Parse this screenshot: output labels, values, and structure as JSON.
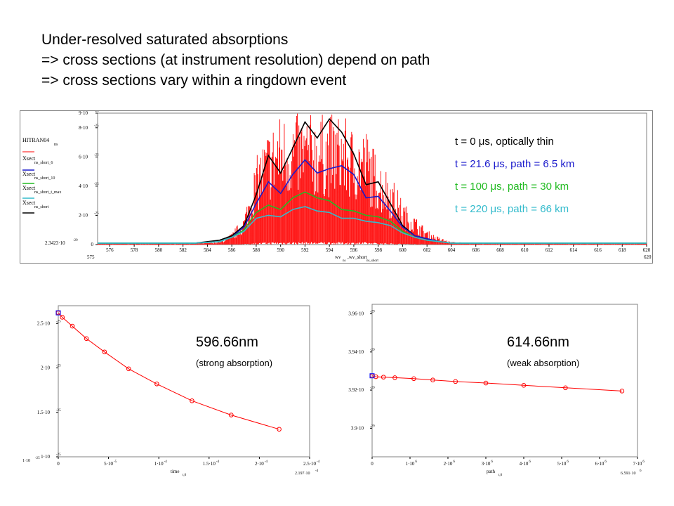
{
  "title_lines": [
    "Under-resolved saturated absorptions",
    "=> cross sections (at instrument resolution) depend on path",
    "=> cross sections vary within a ringdown event"
  ],
  "top_legend_labels": [
    "HITRAN04",
    "Xsect",
    "Xsect",
    "Xsect",
    "Xsect"
  ],
  "top_legend_subs": [
    "ns",
    "ns_short_6",
    "ns_short_10",
    "ns_short_t_max",
    "ns_short"
  ],
  "top_y_bottom_label": "2.3423·10",
  "top_y_bottom_exp": "-29",
  "top_x_left_limit": "575",
  "top_x_right_limit": "620",
  "top_x_var": "wv",
  "top_x_var_sub": "ns",
  "top_x_var2": ",wv_short",
  "top_x_var2_sub": "ns_short",
  "legend_entries": [
    {
      "text": "t = 0 μs, optically thin",
      "color": "#000000"
    },
    {
      "text": "t = 21.6 μs, path = 6.5 km",
      "color": "#1a1acc"
    },
    {
      "text": "t = 100 μs, path = 30 km",
      "color": "#22bb22"
    },
    {
      "text": "t = 220 μs, path = 66 km",
      "color": "#33bbcc"
    }
  ],
  "left_annot": {
    "wavelength": "596.66nm",
    "note": "(strong absorption)"
  },
  "right_annot": {
    "wavelength": "614.66nm",
    "note": "(weak absorption)"
  },
  "left_x_var": "time",
  "left_x_var_sub": "t,0",
  "left_x_right_limit": "2.197·10",
  "left_x_right_exp": "-4",
  "left_y_bottom_label": "1·10",
  "left_y_bottom_exp": "-25",
  "right_x_var": "path",
  "right_x_var_sub": "t,0",
  "right_x_right_limit": "6.591·10",
  "right_x_right_exp": "6",
  "colors": {
    "hitran": "#ff0000",
    "hires": "#000000",
    "short6": "#1a1acc",
    "short10": "#22bb22",
    "tmax": "#33bbcc",
    "marker": "#ff0000",
    "square": "#0000ff"
  },
  "chart_data": [
    {
      "type": "line",
      "title": "",
      "xlabel": "wv_ns, wv_short_ns_short",
      "ylabel": "",
      "xlim": [
        575,
        620
      ],
      "ylim": [
        0,
        9e-25
      ],
      "x_ticks": [
        576,
        578,
        580,
        582,
        584,
        586,
        588,
        590,
        592,
        594,
        596,
        598,
        600,
        602,
        604,
        606,
        608,
        610,
        612,
        614,
        616,
        618,
        620
      ],
      "y_ticks": [
        0,
        2e-25,
        4e-25,
        6e-25,
        8e-25,
        9e-25
      ],
      "x": [
        575,
        577,
        579,
        581,
        583,
        585,
        586,
        587,
        588,
        589,
        590,
        591,
        592,
        593,
        594,
        595,
        596,
        597,
        598,
        599,
        600,
        601,
        602,
        603,
        604,
        606,
        608,
        610,
        612,
        614,
        616,
        618,
        620
      ],
      "series": [
        {
          "name": "HITRAN04 ns",
          "values": [
            1e-26,
            1e-26,
            1e-26,
            1e-26,
            1e-26,
            2e-26,
            8e-26,
            2e-25,
            6e-25,
            8e-25,
            9e-25,
            9e-25,
            9e-25,
            9e-25,
            9e-25,
            9e-25,
            8e-25,
            8e-25,
            6e-25,
            5e-25,
            3e-25,
            2e-25,
            1e-25,
            5e-26,
            2e-26,
            1e-26,
            1e-26,
            1e-26,
            1e-26,
            1e-26,
            1e-26,
            1e-26,
            1e-26
          ]
        },
        {
          "name": "Xsect ns_short_6",
          "values": [
            1e-26,
            1e-26,
            1e-26,
            1e-26,
            1e-26,
            2e-26,
            5e-26,
            1.2e-25,
            2.8e-25,
            4.3e-25,
            3.5e-25,
            4.8e-25,
            5.8e-25,
            4.9e-25,
            5.2e-25,
            5.4e-25,
            4.8e-25,
            3.2e-25,
            3.3e-25,
            2.3e-25,
            1.2e-25,
            6e-26,
            4e-26,
            2e-26,
            1e-26,
            1e-26,
            1e-26,
            1e-26,
            1e-26,
            1e-26,
            1e-26,
            1e-26,
            1e-26
          ]
        },
        {
          "name": "Xsect ns_short_10",
          "values": [
            1e-26,
            1e-26,
            1e-26,
            1e-26,
            1e-26,
            2e-26,
            5e-26,
            1e-25,
            2.2e-25,
            2.7e-25,
            2.4e-25,
            3.2e-25,
            3.6e-25,
            3.2e-25,
            3e-25,
            2.4e-25,
            2.3e-25,
            2e-25,
            1.9e-25,
            1.6e-25,
            9e-26,
            5e-26,
            3e-26,
            2e-26,
            1e-26,
            1e-26,
            1e-26,
            1e-26,
            1e-26,
            1e-26,
            1e-26,
            1e-26,
            1e-26
          ]
        },
        {
          "name": "Xsect ns_short_t_max",
          "values": [
            1e-26,
            1e-26,
            1e-26,
            1e-26,
            1e-26,
            2e-26,
            5e-26,
            9e-26,
            1.8e-25,
            2e-25,
            1.9e-25,
            2.4e-25,
            2.6e-25,
            2.3e-25,
            2.2e-25,
            1.8e-25,
            1.8e-25,
            1.6e-25,
            1.5e-25,
            1.3e-25,
            8e-26,
            5e-26,
            3e-26,
            2e-26,
            1e-26,
            1e-26,
            1e-26,
            1e-26,
            1e-26,
            1e-26,
            1e-26,
            1e-26,
            1e-26
          ]
        },
        {
          "name": "Xsect directconv ns_short",
          "values": [
            1e-26,
            1e-26,
            1e-26,
            1e-26,
            1e-26,
            3e-26,
            6e-26,
            1.3e-25,
            3.4e-25,
            6.1e-25,
            4.9e-25,
            6.6e-25,
            8.4e-25,
            7.3e-25,
            8.6e-25,
            7.7e-25,
            6.2e-25,
            4.1e-25,
            4.3e-25,
            2.8e-25,
            1.3e-25,
            6e-26,
            4e-26,
            2e-26,
            1e-26,
            1e-26,
            1e-26,
            1e-26,
            1e-26,
            1e-26,
            1e-26,
            1e-26,
            1e-26
          ]
        }
      ],
      "legend": [
        "t = 0 μs, optically thin",
        "t = 21.6 μs, path = 6.5 km",
        "t = 100 μs, path = 30 km",
        "t = 220 μs, path = 66 km"
      ]
    },
    {
      "type": "scatter",
      "title": "596.66nm",
      "xlabel": "time t,0",
      "ylabel": "",
      "xlim": [
        0,
        0.00025
      ],
      "ylim": [
        1e-25,
        2.7e-25
      ],
      "x_ticks": [
        0,
        5e-05,
        0.0001,
        0.00015,
        0.0002,
        0.00025
      ],
      "y_ticks": [
        1e-25,
        1.5e-25,
        2e-25,
        2.5e-25
      ],
      "x": [
        0,
        4e-06,
        1.4e-05,
        2.8e-05,
        4.6e-05,
        7e-05,
        9.8e-05,
        0.000133,
        0.000172,
        0.0002197
      ],
      "y": [
        2.62e-25,
        2.57e-25,
        2.47e-25,
        2.33e-25,
        2.18e-25,
        1.99e-25,
        1.82e-25,
        1.63e-25,
        1.47e-25,
        1.31e-25
      ]
    },
    {
      "type": "scatter",
      "title": "614.66nm",
      "xlabel": "path t,0",
      "ylabel": "",
      "xlim": [
        0,
        7000000.0
      ],
      "ylim": [
        3.885e-29,
        3.965e-29
      ],
      "x_ticks": [
        0,
        1000000.0,
        2000000.0,
        3000000.0,
        4000000.0,
        5000000.0,
        6000000.0,
        7000000.0
      ],
      "y_ticks": [
        3.9e-29,
        3.92e-29,
        3.94e-29,
        3.96e-29
      ],
      "x": [
        0,
        100000.0,
        300000.0,
        600000.0,
        1100000.0,
        1600000.0,
        2200000.0,
        3000000.0,
        4000000.0,
        5100000.0,
        6591000.0
      ],
      "y": [
        3.9275e-29,
        3.927e-29,
        3.9268e-29,
        3.9265e-29,
        3.926e-29,
        3.9253e-29,
        3.9245e-29,
        3.9237e-29,
        3.9225e-29,
        3.9212e-29,
        3.9195e-29
      ]
    }
  ]
}
